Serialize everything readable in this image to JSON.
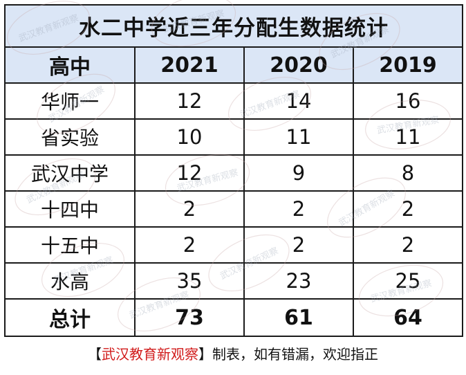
{
  "chart_data": {
    "type": "table",
    "title": "水二中学近三年分配生数据统计",
    "columns": [
      "高中",
      "2021",
      "2020",
      "2019"
    ],
    "rows": [
      {
        "school": "华师一",
        "values": [
          12,
          14,
          16
        ]
      },
      {
        "school": "省实验",
        "values": [
          10,
          11,
          11
        ]
      },
      {
        "school": "武汉中学",
        "values": [
          12,
          9,
          8
        ]
      },
      {
        "school": "十四中",
        "values": [
          2,
          2,
          2
        ]
      },
      {
        "school": "十五中",
        "values": [
          2,
          2,
          2
        ]
      },
      {
        "school": "水高",
        "values": [
          35,
          23,
          25
        ]
      }
    ],
    "total": {
      "label": "总计",
      "values": [
        73,
        61,
        64
      ]
    }
  },
  "footer": {
    "open_bracket": "【",
    "source_name": "武汉教育新观察",
    "close_bracket": "】",
    "note": "制表，如有错漏，欢迎指正"
  },
  "watermark_text": "武汉教育新观察",
  "colors": {
    "header_bg": "#dbe6f6",
    "footer_source": "#d11a1a",
    "border": "#1a1a1a"
  }
}
